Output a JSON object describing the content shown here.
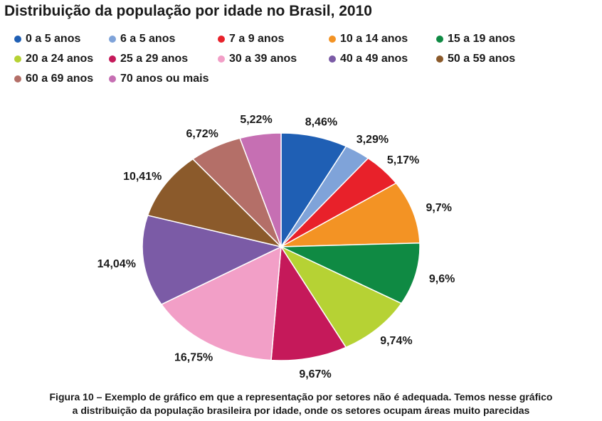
{
  "chart_data": {
    "type": "pie",
    "title": "Distribuição da população por idade no Brasil, 2010",
    "legend_position": "top",
    "categories": [
      "0 a 5 anos",
      "6 a 5 anos",
      "7 a 9 anos",
      "10 a 14 anos",
      "15 a 19 anos",
      "20 a 24 anos",
      "25 a 29 anos",
      "30 a 39 anos",
      "40 a 49 anos",
      "50 a 59 anos",
      "60 a 69 anos",
      "70 anos ou mais"
    ],
    "values": [
      8.46,
      3.29,
      5.17,
      9.7,
      9.6,
      9.74,
      9.67,
      16.75,
      14.04,
      10.41,
      6.72,
      5.22
    ],
    "labels": [
      "8,46%",
      "3,29%",
      "5,17%",
      "9,7%",
      "9,6%",
      "9,74%",
      "9,67%",
      "16,75%",
      "14,04%",
      "10,41%",
      "6,72%",
      "5,22%"
    ],
    "colors": [
      "#1f5fb4",
      "#7fa3d9",
      "#e8212a",
      "#f39324",
      "#0f8a43",
      "#b6d234",
      "#c5195a",
      "#f29fc7",
      "#7b5ba6",
      "#8b5a2b",
      "#b46f68",
      "#c66fb3"
    ]
  },
  "caption": {
    "line1": "Figura 10 – Exemplo de gráfico em que a representação por setores não é adequada. Temos nesse gráfico",
    "line2": "a distribuição da população brasileira por idade, onde os setores ocupam áreas muito parecidas"
  }
}
